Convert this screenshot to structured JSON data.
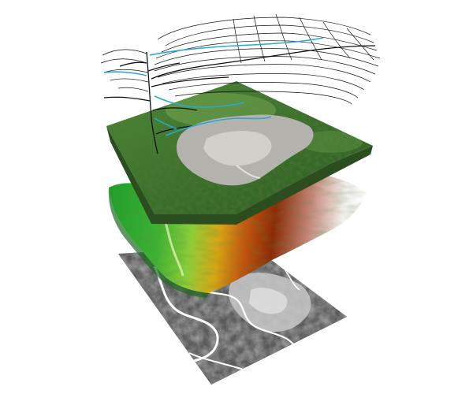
{
  "figure": {
    "layers": [
      {
        "id": "contour-layer",
        "kind": "contours-and-streams",
        "colors": {
          "contour": "#111111",
          "stream": "#29a8d6"
        }
      },
      {
        "id": "terrain-layer",
        "kind": "textured-terrain",
        "colors": {
          "forest_dark": "#2e5a22",
          "forest": "#4d8a35",
          "forest_light": "#7fae56",
          "bare_rock": "#b5b3ad",
          "rock_light": "#dcdad4"
        }
      },
      {
        "id": "elevation-layer",
        "kind": "elevation-color-ramp",
        "colors": {
          "low": "#1f9e2b",
          "low_mid": "#8ccf3a",
          "mid": "#d8a614",
          "mid_high": "#c4560f",
          "high": "#8b2a07",
          "peak": "#ffffff"
        }
      },
      {
        "id": "imagery-layer",
        "kind": "grayscale-imagery",
        "colors": {
          "dark": "#2a2a2a",
          "mid": "#6b6b6b",
          "light": "#cfcfcf",
          "road": "#ffffff"
        }
      }
    ]
  }
}
